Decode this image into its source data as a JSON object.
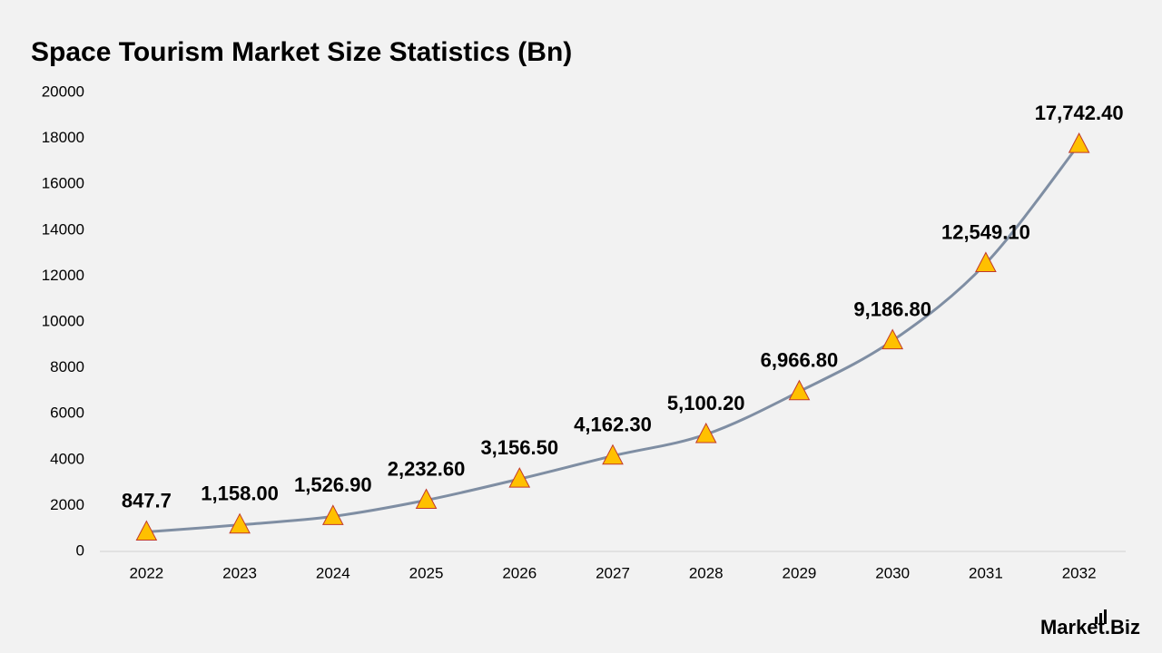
{
  "chart_data": {
    "type": "line",
    "title": "Space Tourism Market Size Statistics (Bn)",
    "categories": [
      "2022",
      "2023",
      "2024",
      "2025",
      "2026",
      "2027",
      "2028",
      "2029",
      "2030",
      "2031",
      "2032"
    ],
    "values": [
      847.7,
      1158.0,
      1526.9,
      2232.6,
      3156.5,
      4162.3,
      5100.2,
      6966.8,
      9186.8,
      12549.1,
      17742.4
    ],
    "value_labels": [
      "847.7",
      "1,158.00",
      "1,526.90",
      "2,232.60",
      "3,156.50",
      "4,162.30",
      "5,100.20",
      "6,966.80",
      "9,186.80",
      "12,549.10",
      "17,742.40"
    ],
    "color": "#7f8ea3",
    "marker_color": "#ffc000",
    "marker_edge_color": "#c0392b",
    "ylim": [
      0,
      20000
    ],
    "yticks": [
      0,
      2000,
      4000,
      6000,
      8000,
      10000,
      12000,
      14000,
      16000,
      18000,
      20000
    ],
    "grid": false
  },
  "logo": "Market.Biz"
}
